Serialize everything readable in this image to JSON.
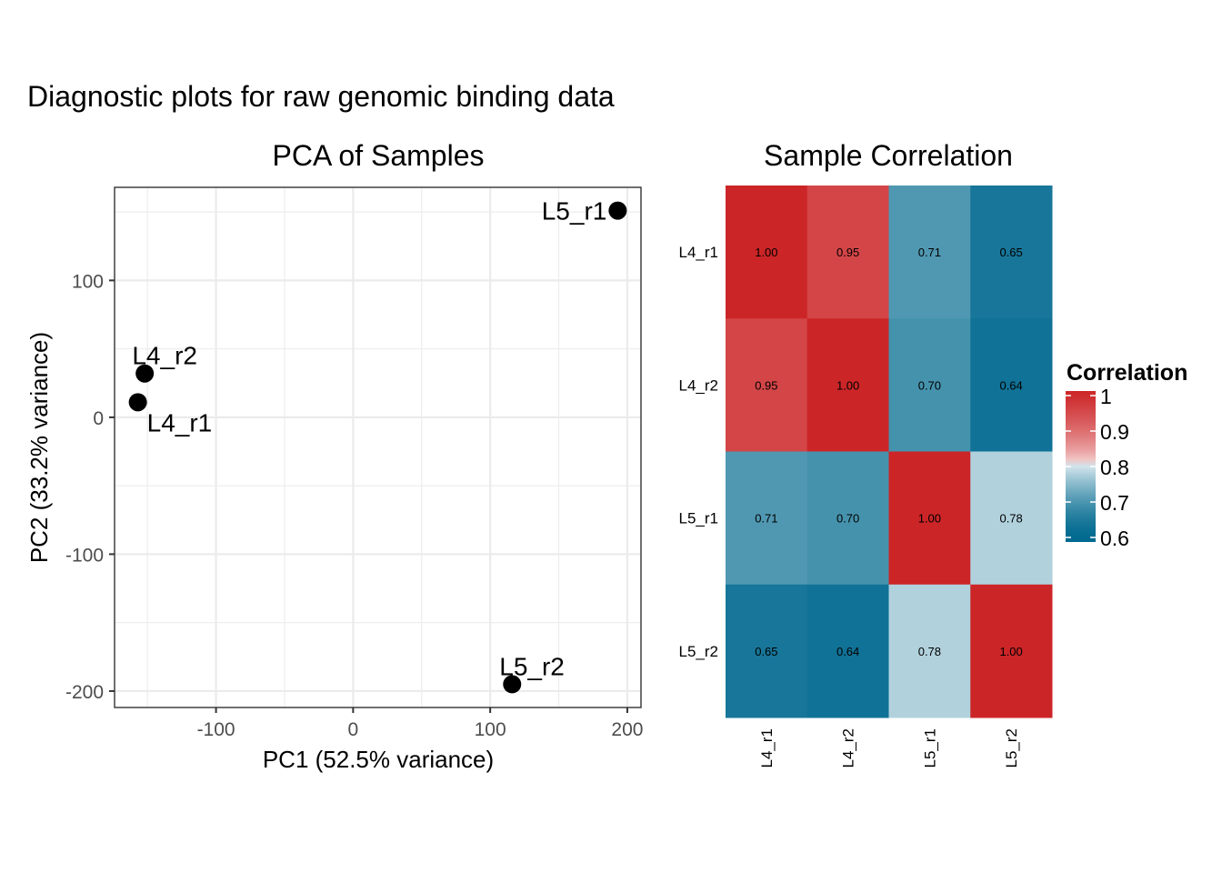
{
  "title": "Diagnostic plots for raw genomic binding data",
  "chart_data": [
    {
      "type": "scatter",
      "title": "PCA of Samples",
      "xlabel": "PC1 (52.5% variance)",
      "ylabel": "PC2 (33.2% variance)",
      "xlim": [
        -174,
        210
      ],
      "ylim": [
        -212,
        168
      ],
      "xticks": [
        -100,
        0,
        100,
        200
      ],
      "yticks": [
        -200,
        -100,
        0,
        100
      ],
      "grid": true,
      "points": [
        {
          "label": "L4_r1",
          "x": -157,
          "y": 11,
          "label_pos": "bottom-right"
        },
        {
          "label": "L4_r2",
          "x": -152,
          "y": 32,
          "label_pos": "top"
        },
        {
          "label": "L5_r1",
          "x": 193,
          "y": 151,
          "label_pos": "left"
        },
        {
          "label": "L5_r2",
          "x": 116,
          "y": -195,
          "label_pos": "top-right"
        }
      ],
      "point_color": "#000000"
    },
    {
      "type": "heatmap",
      "title": "Sample Correlation",
      "rows": [
        "L4_r1",
        "L4_r2",
        "L5_r1",
        "L5_r2"
      ],
      "columns": [
        "L4_r1",
        "L4_r2",
        "L5_r1",
        "L5_r2"
      ],
      "values": [
        [
          1.0,
          0.95,
          0.71,
          0.65
        ],
        [
          0.95,
          1.0,
          0.7,
          0.64
        ],
        [
          0.71,
          0.7,
          1.0,
          0.78
        ],
        [
          0.65,
          0.64,
          0.78,
          1.0
        ]
      ],
      "cell_labels": [
        [
          "1.00",
          "0.95",
          "0.71",
          "0.65"
        ],
        [
          "0.95",
          "1.00",
          "0.70",
          "0.64"
        ],
        [
          "0.71",
          "0.70",
          "1.00",
          "0.78"
        ],
        [
          "0.65",
          "0.64",
          "0.78",
          "1.00"
        ]
      ],
      "legend": {
        "title": "Correlation",
        "placement": "right",
        "ticks": [
          1,
          0.9,
          0.8,
          0.7,
          0.6
        ],
        "tick_labels": [
          "1",
          "0.9",
          "0.8",
          "0.7",
          "0.6"
        ],
        "range": [
          0.6,
          1.0
        ],
        "midpoint": 0.8,
        "low_color": "#00698f",
        "mid_color": "#ffffff",
        "high_color": "#cc2527"
      }
    }
  ]
}
